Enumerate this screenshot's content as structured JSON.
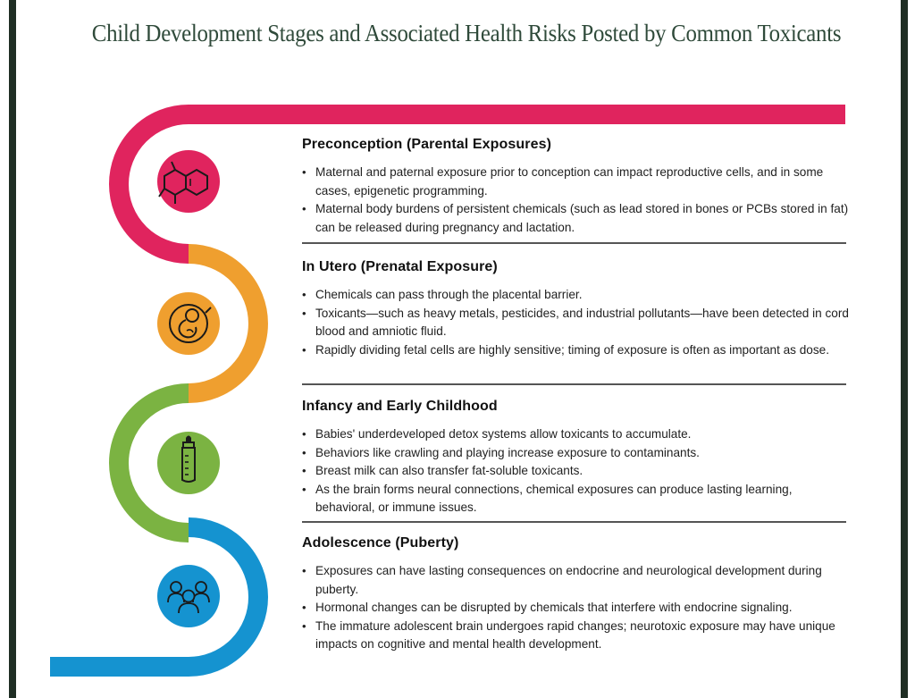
{
  "title": "Child Development Stages and Associated Health Risks Posted by Common Toxicants",
  "colors": {
    "frame": "#1f2e24",
    "title": "#2f4a3a",
    "preconception": "#e0245e",
    "in_utero": "#ef9f2f",
    "infancy": "#7bb342",
    "adolescence": "#1593d0"
  },
  "stages": [
    {
      "title": "Preconception (Parental Exposures)",
      "icon": "molecule-icon",
      "bullets": [
        "Maternal and paternal exposure prior to conception can impact reproductive cells, and in some cases, epigenetic programming.",
        "Maternal body burdens of persistent chemicals (such as lead stored in bones or PCBs stored in fat) can be released during pregnancy and lactation."
      ]
    },
    {
      "title": "In Utero (Prenatal Exposure)",
      "icon": "fetus-icon",
      "bullets": [
        "Chemicals can pass through the placental barrier.",
        "Toxicants—such as heavy metals, pesticides, and industrial pollutants—have been detected in cord blood and amniotic fluid.",
        "Rapidly dividing fetal cells are highly sensitive; timing of exposure is often as important as dose."
      ]
    },
    {
      "title": "Infancy and Early Childhood",
      "icon": "baby-bottle-icon",
      "bullets": [
        "Babies' underdeveloped detox systems allow toxicants to accumulate.",
        "Behaviors like crawling and playing increase exposure to contaminants.",
        "Breast milk can also transfer fat-soluble toxicants.",
        "As the brain forms neural connections, chemical exposures can produce lasting learning, behavioral, or immune issues."
      ]
    },
    {
      "title": "Adolescence (Puberty)",
      "icon": "teen-group-icon",
      "bullets": [
        "Exposures can have lasting consequences on endocrine and neurological development during puberty.",
        "Hormonal changes can be disrupted by chemicals that interfere with endocrine signaling.",
        "The immature adolescent brain undergoes rapid changes; neurotoxic exposure may have unique impacts on cognitive and mental health development."
      ]
    }
  ]
}
